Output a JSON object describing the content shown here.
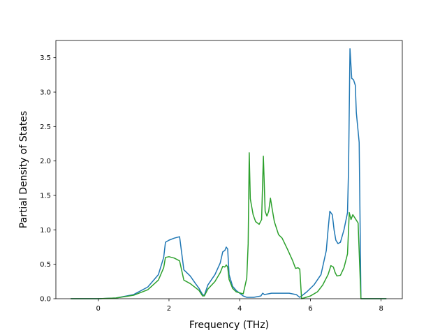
{
  "chart_data": {
    "type": "line",
    "title": "",
    "xlabel": "Frequency (THz)",
    "ylabel": "Partial Density of States",
    "xlim": [
      -1.2,
      8.6
    ],
    "ylim": [
      0,
      3.75
    ],
    "xticks": [
      0,
      2,
      4,
      6,
      8
    ],
    "xtick_labels": [
      "0",
      "2",
      "4",
      "6",
      "8"
    ],
    "yticks": [
      0,
      0.5,
      1.0,
      1.5,
      2.0,
      2.5,
      3.0,
      3.5
    ],
    "ytick_labels": [
      "0.0",
      "0.5",
      "1.0",
      "1.5",
      "2.0",
      "2.5",
      "3.0",
      "3.5"
    ],
    "grid": false,
    "legend": "none",
    "series": [
      {
        "color": "#1f77b4",
        "points": [
          [
            -0.78,
            0.0
          ],
          [
            0.0,
            0.0
          ],
          [
            0.5,
            0.01
          ],
          [
            1.0,
            0.06
          ],
          [
            1.4,
            0.17
          ],
          [
            1.7,
            0.35
          ],
          [
            1.85,
            0.6
          ],
          [
            1.9,
            0.82
          ],
          [
            2.0,
            0.85
          ],
          [
            2.15,
            0.88
          ],
          [
            2.3,
            0.9
          ],
          [
            2.42,
            0.42
          ],
          [
            2.6,
            0.33
          ],
          [
            2.75,
            0.22
          ],
          [
            2.85,
            0.15
          ],
          [
            2.95,
            0.06
          ],
          [
            3.0,
            0.05
          ],
          [
            3.1,
            0.2
          ],
          [
            3.3,
            0.35
          ],
          [
            3.45,
            0.52
          ],
          [
            3.52,
            0.68
          ],
          [
            3.58,
            0.7
          ],
          [
            3.62,
            0.75
          ],
          [
            3.66,
            0.72
          ],
          [
            3.7,
            0.35
          ],
          [
            3.8,
            0.18
          ],
          [
            3.9,
            0.12
          ],
          [
            4.0,
            0.08
          ],
          [
            4.1,
            0.04
          ],
          [
            4.2,
            0.02
          ],
          [
            4.4,
            0.02
          ],
          [
            4.6,
            0.04
          ],
          [
            4.65,
            0.08
          ],
          [
            4.7,
            0.06
          ],
          [
            4.8,
            0.07
          ],
          [
            4.9,
            0.08
          ],
          [
            5.2,
            0.08
          ],
          [
            5.4,
            0.08
          ],
          [
            5.5,
            0.07
          ],
          [
            5.6,
            0.06
          ],
          [
            5.7,
            0.02
          ],
          [
            5.9,
            0.1
          ],
          [
            6.1,
            0.2
          ],
          [
            6.3,
            0.35
          ],
          [
            6.45,
            0.7
          ],
          [
            6.5,
            1.0
          ],
          [
            6.55,
            1.27
          ],
          [
            6.62,
            1.22
          ],
          [
            6.67,
            1.0
          ],
          [
            6.72,
            0.85
          ],
          [
            6.78,
            0.8
          ],
          [
            6.85,
            0.82
          ],
          [
            6.95,
            1.0
          ],
          [
            7.05,
            1.25
          ],
          [
            7.08,
            1.9
          ],
          [
            7.12,
            3.63
          ],
          [
            7.17,
            3.2
          ],
          [
            7.22,
            3.18
          ],
          [
            7.27,
            3.1
          ],
          [
            7.3,
            2.7
          ],
          [
            7.38,
            2.27
          ],
          [
            7.43,
            0.0
          ],
          [
            7.6,
            0.0
          ],
          [
            8.15,
            0.0
          ]
        ]
      },
      {
        "color": "#2ca02c",
        "points": [
          [
            -0.78,
            0.0
          ],
          [
            0.0,
            0.0
          ],
          [
            0.5,
            0.01
          ],
          [
            1.0,
            0.05
          ],
          [
            1.4,
            0.13
          ],
          [
            1.7,
            0.27
          ],
          [
            1.85,
            0.45
          ],
          [
            1.9,
            0.6
          ],
          [
            2.0,
            0.61
          ],
          [
            2.15,
            0.59
          ],
          [
            2.3,
            0.55
          ],
          [
            2.42,
            0.27
          ],
          [
            2.6,
            0.22
          ],
          [
            2.75,
            0.16
          ],
          [
            2.85,
            0.12
          ],
          [
            2.95,
            0.04
          ],
          [
            3.0,
            0.04
          ],
          [
            3.1,
            0.14
          ],
          [
            3.3,
            0.25
          ],
          [
            3.45,
            0.38
          ],
          [
            3.52,
            0.47
          ],
          [
            3.58,
            0.46
          ],
          [
            3.62,
            0.49
          ],
          [
            3.66,
            0.46
          ],
          [
            3.7,
            0.28
          ],
          [
            3.8,
            0.15
          ],
          [
            3.9,
            0.1
          ],
          [
            4.1,
            0.07
          ],
          [
            4.2,
            0.3
          ],
          [
            4.24,
            0.8
          ],
          [
            4.27,
            2.12
          ],
          [
            4.3,
            1.45
          ],
          [
            4.38,
            1.22
          ],
          [
            4.45,
            1.12
          ],
          [
            4.55,
            1.08
          ],
          [
            4.62,
            1.15
          ],
          [
            4.67,
            2.07
          ],
          [
            4.72,
            1.27
          ],
          [
            4.77,
            1.2
          ],
          [
            4.82,
            1.27
          ],
          [
            4.87,
            1.46
          ],
          [
            4.92,
            1.3
          ],
          [
            4.98,
            1.12
          ],
          [
            5.1,
            0.93
          ],
          [
            5.2,
            0.88
          ],
          [
            5.35,
            0.72
          ],
          [
            5.5,
            0.55
          ],
          [
            5.58,
            0.44
          ],
          [
            5.65,
            0.45
          ],
          [
            5.7,
            0.43
          ],
          [
            5.75,
            0.0
          ],
          [
            6.0,
            0.04
          ],
          [
            6.2,
            0.1
          ],
          [
            6.35,
            0.2
          ],
          [
            6.5,
            0.35
          ],
          [
            6.58,
            0.48
          ],
          [
            6.65,
            0.46
          ],
          [
            6.7,
            0.38
          ],
          [
            6.75,
            0.33
          ],
          [
            6.85,
            0.34
          ],
          [
            6.95,
            0.45
          ],
          [
            7.05,
            0.65
          ],
          [
            7.1,
            1.25
          ],
          [
            7.15,
            1.15
          ],
          [
            7.2,
            1.22
          ],
          [
            7.25,
            1.18
          ],
          [
            7.35,
            1.1
          ],
          [
            7.43,
            0.0
          ],
          [
            7.6,
            0.0
          ],
          [
            8.15,
            0.0
          ]
        ]
      }
    ]
  }
}
